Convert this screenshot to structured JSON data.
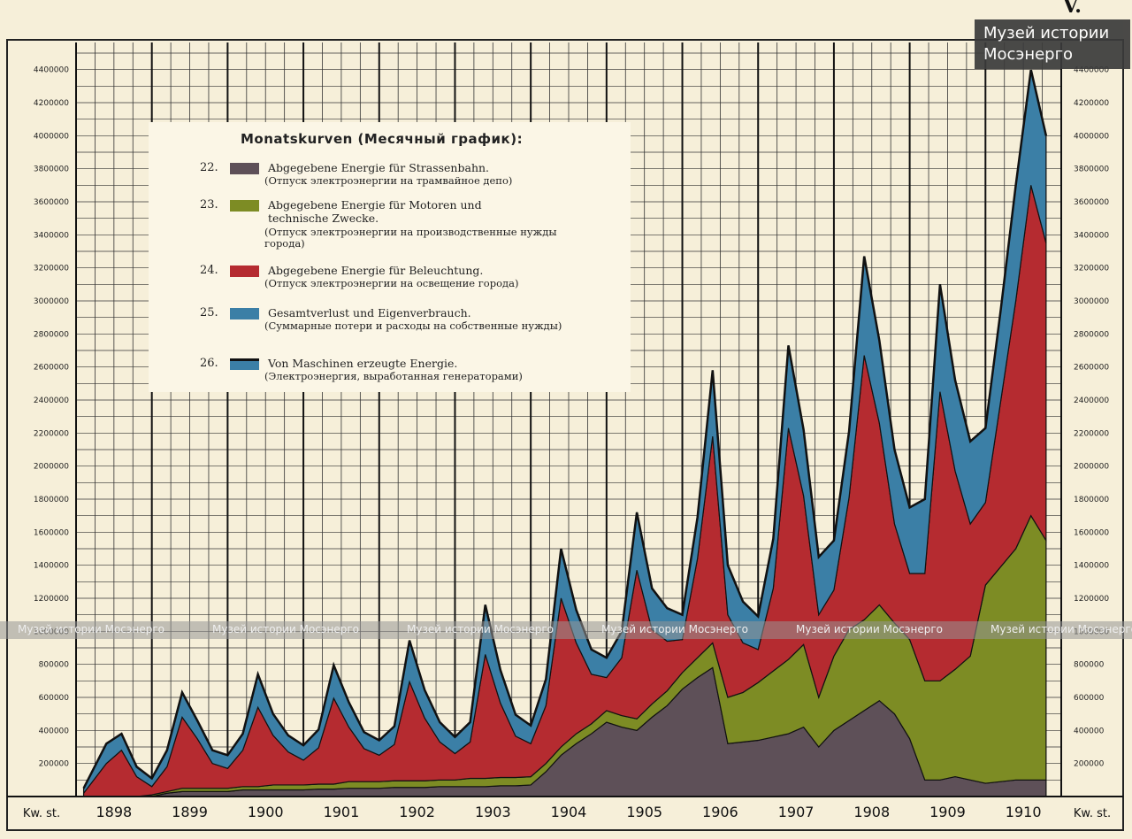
{
  "chart_data": {
    "type": "area",
    "title": "Monatskurven (Месячный график):",
    "x_unit_label": "Kw. st.",
    "years": [
      "1898",
      "1899",
      "1900",
      "1901",
      "1902",
      "1903",
      "1904",
      "1905",
      "1906",
      "1907",
      "1908",
      "1909",
      "1910"
    ],
    "ylim": [
      0,
      4500000
    ],
    "y_ticks_left": [
      "200000",
      "400000",
      "600000",
      "800000",
      "1000000",
      "1200000",
      "1400000",
      "1600000",
      "1800000",
      "2000000",
      "2200000",
      "2400000",
      "2600000",
      "2800000",
      "3000000",
      "3200000",
      "3400000",
      "3600000",
      "3800000",
      "4000000",
      "4200000",
      "4400000"
    ],
    "y_ticks_right": [
      "200000",
      "400000",
      "600000",
      "800000",
      "1000000",
      "1200000",
      "1400000",
      "1600000",
      "1800000",
      "2000000",
      "2200000",
      "2400000",
      "2600000",
      "2800000",
      "3000000",
      "3200000",
      "3400000",
      "3600000",
      "3800000",
      "4000000",
      "4200000",
      "4400000"
    ],
    "grid": true,
    "legend_position": "top-left",
    "x": [
      1898.1,
      1898.4,
      1898.6,
      1898.8,
      1899.0,
      1899.2,
      1899.4,
      1899.6,
      1899.8,
      1900.0,
      1900.2,
      1900.4,
      1900.6,
      1900.8,
      1901.0,
      1901.2,
      1901.4,
      1901.6,
      1901.8,
      1902.0,
      1902.2,
      1902.4,
      1902.6,
      1902.8,
      1903.0,
      1903.2,
      1903.4,
      1903.6,
      1903.8,
      1904.0,
      1904.2,
      1904.4,
      1904.6,
      1904.8,
      1905.0,
      1905.2,
      1905.4,
      1905.6,
      1905.8,
      1906.0,
      1906.2,
      1906.4,
      1906.6,
      1906.8,
      1907.0,
      1907.2,
      1907.4,
      1907.6,
      1907.8,
      1908.0,
      1908.2,
      1908.4,
      1908.6,
      1908.8,
      1909.0,
      1909.2,
      1909.4,
      1909.6,
      1909.8,
      1910.0,
      1910.2,
      1910.4,
      1910.6,
      1910.8
    ],
    "series": [
      {
        "name": "Abgegebene Energie für Strassenbahn.",
        "color": "#5e5058",
        "values": [
          0,
          0,
          0,
          0,
          0,
          20000,
          30000,
          30000,
          30000,
          30000,
          40000,
          40000,
          40000,
          40000,
          40000,
          45000,
          45000,
          50000,
          50000,
          50000,
          55000,
          55000,
          55000,
          60000,
          60000,
          60000,
          60000,
          65000,
          65000,
          70000,
          150000,
          250000,
          320000,
          380000,
          450000,
          420000,
          400000,
          480000,
          550000,
          650000,
          720000,
          780000,
          320000,
          330000,
          340000,
          360000,
          380000,
          420000,
          300000,
          400000,
          460000,
          520000,
          580000,
          500000,
          350000,
          100000,
          100000,
          120000,
          100000,
          80000,
          90000,
          100000,
          100000,
          100000
        ]
      },
      {
        "name": "Abgegebene Energie für Motoren und technische Zwecke.",
        "color": "#7d8c24",
        "values": [
          0,
          0,
          0,
          0,
          10000,
          10000,
          20000,
          20000,
          20000,
          20000,
          20000,
          20000,
          30000,
          30000,
          30000,
          30000,
          30000,
          40000,
          40000,
          40000,
          40000,
          40000,
          40000,
          40000,
          40000,
          50000,
          50000,
          50000,
          50000,
          50000,
          50000,
          50000,
          60000,
          60000,
          70000,
          70000,
          70000,
          80000,
          90000,
          100000,
          120000,
          150000,
          280000,
          300000,
          350000,
          400000,
          450000,
          500000,
          300000,
          450000,
          550000,
          550000,
          580000,
          550000,
          600000,
          600000,
          600000,
          650000,
          750000,
          1200000,
          1300000,
          1400000,
          1600000,
          1450000
        ]
      },
      {
        "name": "Abgegebene Energie für Beleuchtung.",
        "color": "#b52b30",
        "values": [
          20000,
          200000,
          280000,
          120000,
          50000,
          150000,
          430000,
          300000,
          150000,
          120000,
          220000,
          480000,
          300000,
          200000,
          150000,
          220000,
          520000,
          330000,
          200000,
          160000,
          220000,
          600000,
          380000,
          230000,
          160000,
          220000,
          750000,
          450000,
          250000,
          200000,
          350000,
          900000,
          550000,
          300000,
          200000,
          350000,
          900000,
          450000,
          300000,
          200000,
          600000,
          1250000,
          500000,
          300000,
          200000,
          500000,
          1400000,
          900000,
          500000,
          400000,
          800000,
          1600000,
          1100000,
          600000,
          400000,
          650000,
          1750000,
          1200000,
          800000,
          500000,
          1000000,
          1500000,
          2000000,
          1800000
        ]
      },
      {
        "name": "Gesamtverlust und Eigenverbrauch.",
        "color": "#3b7fa6",
        "values": [
          30000,
          120000,
          100000,
          60000,
          50000,
          100000,
          150000,
          110000,
          80000,
          80000,
          100000,
          200000,
          130000,
          100000,
          90000,
          110000,
          200000,
          150000,
          100000,
          90000,
          110000,
          250000,
          170000,
          120000,
          100000,
          120000,
          300000,
          200000,
          130000,
          110000,
          160000,
          300000,
          200000,
          150000,
          120000,
          160000,
          350000,
          250000,
          200000,
          150000,
          250000,
          400000,
          300000,
          250000,
          200000,
          300000,
          500000,
          400000,
          350000,
          300000,
          400000,
          600000,
          500000,
          450000,
          400000,
          450000,
          650000,
          550000,
          500000,
          450000,
          550000,
          700000,
          700000,
          650000
        ]
      }
    ]
  },
  "legend": {
    "title": "Monatskurven (Месячный график):",
    "items": [
      {
        "num": "22.",
        "label": "Abgegebene Energie für Strassenbahn.",
        "note": "(Отпуск электроэнергии на трамвайное депо)",
        "color": "#5e5058"
      },
      {
        "num": "23.",
        "label": "Abgegebene Energie für Motoren und technische Zwecke.",
        "note": "(Отпуск электроэнергии на производственные нужды города)",
        "color": "#7d8c24"
      },
      {
        "num": "24.",
        "label": "Abgegebene Energie für Beleuchtung.",
        "note": "(Отпуск электроэнергии на освещение города)",
        "color": "#b52b30"
      },
      {
        "num": "25.",
        "label": "Gesamtverlust und Eigenverbrauch.",
        "note": "(Суммарные потери и расходы на собственные нужды)",
        "color": "#3b7fa6"
      },
      {
        "num": "26.",
        "label": "Von Maschinen erzeugte Energie.",
        "note": "(Электроэнергия, выработанная генераторами)",
        "color": "#3b7fa6"
      }
    ]
  },
  "watermark": {
    "badge": "Музей истории\nМосэнерго",
    "band_text": "Музей истории Мосэнерго"
  },
  "corner_mark": "V."
}
